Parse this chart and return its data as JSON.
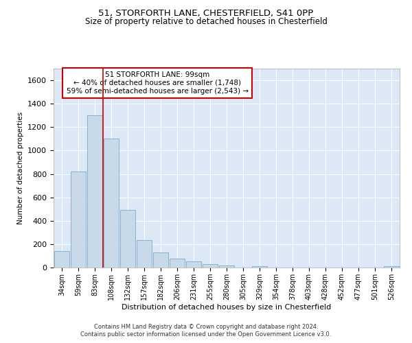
{
  "title1": "51, STORFORTH LANE, CHESTERFIELD, S41 0PP",
  "title2": "Size of property relative to detached houses in Chesterfield",
  "xlabel": "Distribution of detached houses by size in Chesterfield",
  "ylabel": "Number of detached properties",
  "bar_color": "#c8daea",
  "bar_edge_color": "#7aaac8",
  "categories": [
    "34sqm",
    "59sqm",
    "83sqm",
    "108sqm",
    "132sqm",
    "157sqm",
    "182sqm",
    "206sqm",
    "231sqm",
    "255sqm",
    "280sqm",
    "305sqm",
    "329sqm",
    "354sqm",
    "378sqm",
    "403sqm",
    "428sqm",
    "452sqm",
    "477sqm",
    "501sqm",
    "526sqm"
  ],
  "values": [
    140,
    820,
    1300,
    1100,
    490,
    235,
    130,
    75,
    55,
    30,
    20,
    0,
    10,
    0,
    0,
    0,
    0,
    0,
    0,
    0,
    10
  ],
  "ylim": [
    0,
    1700
  ],
  "yticks": [
    0,
    200,
    400,
    600,
    800,
    1000,
    1200,
    1400,
    1600
  ],
  "annotation_line1": "51 STORFORTH LANE: 99sqm",
  "annotation_line2": "← 40% of detached houses are smaller (1,748)",
  "annotation_line3": "59% of semi-detached houses are larger (2,543) →",
  "vline_x": 2.5,
  "vline_color": "#cc0000",
  "bg_color": "#dce8f5",
  "footer1": "Contains HM Land Registry data © Crown copyright and database right 2024.",
  "footer2": "Contains public sector information licensed under the Open Government Licence v3.0."
}
